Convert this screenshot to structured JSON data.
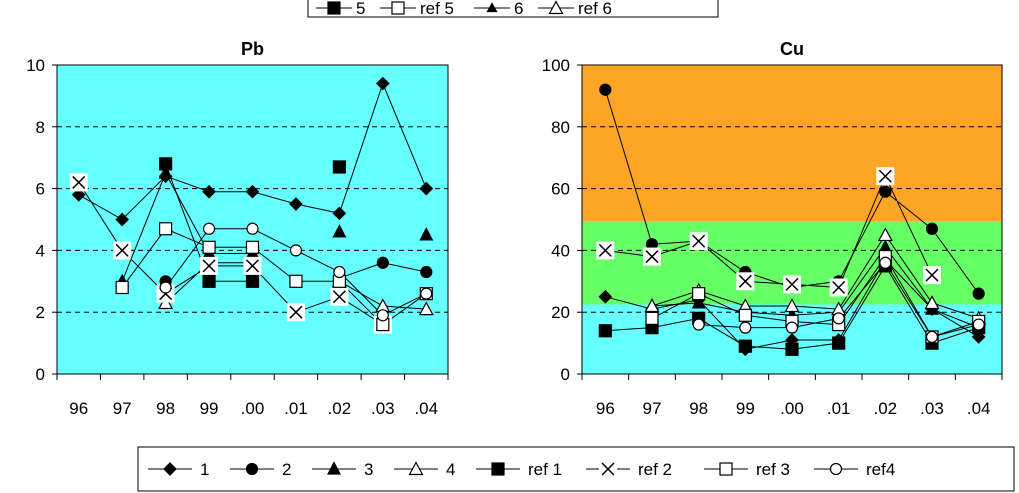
{
  "legends": {
    "top": {
      "entries": [
        {
          "label": "5",
          "marker": "square-filled"
        },
        {
          "label": "ref 5",
          "marker": "square-open"
        },
        {
          "label": "6",
          "marker": "triangle-filled-small"
        },
        {
          "label": "ref 6",
          "marker": "triangle-open"
        }
      ]
    },
    "bottom": {
      "entries": [
        {
          "label": "1",
          "marker": "diamond-filled"
        },
        {
          "label": "2",
          "marker": "circle-filled"
        },
        {
          "label": "3",
          "marker": "triangle-filled"
        },
        {
          "label": "4",
          "marker": "triangle-open"
        },
        {
          "label": "ref 1",
          "marker": "square-filled"
        },
        {
          "label": "ref  2",
          "marker": "cross"
        },
        {
          "label": "ref 3",
          "marker": "square-open"
        },
        {
          "label": "ref4",
          "marker": "circle-open"
        }
      ]
    }
  },
  "colors": {
    "cyan_zone": "#66ffff",
    "green_zone": "#66ff66",
    "orange_zone": "#ffa526",
    "line": "#000000"
  },
  "chart_data": [
    {
      "type": "line",
      "title": "Pb",
      "xlabel": "",
      "ylabel": "",
      "categories": [
        "96",
        "97",
        "98",
        "99",
        ".00",
        ".01",
        ".02",
        ".03",
        ".04"
      ],
      "ylim": [
        0,
        10
      ],
      "yticks": [
        "0",
        "2",
        "4",
        "6",
        "8",
        "10"
      ],
      "grid": "dashed horizontal at y ticks",
      "background_bands": [
        {
          "from": 0,
          "to": 10,
          "color": "cyan_zone"
        }
      ],
      "series": [
        {
          "name": "1",
          "marker": "diamond-filled",
          "values": [
            5.8,
            5.0,
            6.4,
            5.9,
            5.9,
            5.5,
            5.2,
            9.4,
            6.0
          ]
        },
        {
          "name": "2",
          "marker": "circle-filled",
          "values": [
            null,
            null,
            3.0,
            null,
            null,
            null,
            3.1,
            3.6,
            3.3
          ]
        },
        {
          "name": "3",
          "marker": "triangle-filled",
          "values": [
            null,
            3.0,
            6.5,
            3.9,
            3.9,
            null,
            4.6,
            null,
            4.5
          ]
        },
        {
          "name": "4",
          "marker": "triangle-open",
          "values": [
            null,
            null,
            2.3,
            3.6,
            3.6,
            null,
            3.0,
            2.2,
            2.1
          ]
        },
        {
          "name": "ref 1",
          "marker": "square-filled",
          "values": [
            null,
            null,
            6.8,
            3.0,
            3.0,
            null,
            6.7,
            null,
            null
          ]
        },
        {
          "name": "ref  2",
          "marker": "cross",
          "values": [
            6.2,
            4.0,
            2.6,
            3.5,
            3.5,
            2.0,
            2.5,
            1.6,
            null
          ]
        },
        {
          "name": "ref 3",
          "marker": "square-open",
          "values": [
            null,
            2.8,
            4.7,
            4.1,
            4.1,
            3.0,
            3.0,
            1.6,
            2.6
          ]
        },
        {
          "name": "ref4",
          "marker": "circle-open",
          "values": [
            null,
            null,
            2.8,
            4.7,
            4.7,
            4.0,
            3.3,
            1.9,
            2.6
          ]
        }
      ]
    },
    {
      "type": "line",
      "title": "Cu",
      "xlabel": "",
      "ylabel": "",
      "categories": [
        "96",
        "97",
        "98",
        "99",
        ".00",
        ".01",
        ".02",
        ".03",
        ".04"
      ],
      "ylim": [
        0,
        100
      ],
      "yticks": [
        "0",
        "20",
        "40",
        "60",
        "80",
        "100"
      ],
      "grid": "dashed horizontal at y ticks",
      "background_bands": [
        {
          "from": 0,
          "to": 22.5,
          "color": "cyan_zone"
        },
        {
          "from": 22.5,
          "to": 49.5,
          "color": "green_zone"
        },
        {
          "from": 49.5,
          "to": 100,
          "color": "orange_zone"
        }
      ],
      "series": [
        {
          "name": "1",
          "marker": "diamond-filled",
          "values": [
            25,
            21,
            24,
            8,
            11,
            11,
            37,
            21,
            12
          ]
        },
        {
          "name": "2",
          "marker": "circle-filled",
          "values": [
            92,
            42,
            43,
            33,
            28,
            30,
            59,
            47,
            26
          ]
        },
        {
          "name": "3",
          "marker": "triangle-filled",
          "values": [
            null,
            22,
            23,
            20,
            19,
            20,
            41,
            21,
            15
          ]
        },
        {
          "name": "4",
          "marker": "triangle-open",
          "values": [
            null,
            22,
            27,
            22,
            22,
            21,
            45,
            23,
            18
          ]
        },
        {
          "name": "ref 1",
          "marker": "square-filled",
          "values": [
            14,
            15,
            18,
            9,
            8,
            10,
            35,
            10,
            15
          ]
        },
        {
          "name": "ref  2",
          "marker": "cross",
          "values": [
            40,
            38,
            43,
            30,
            29,
            28,
            64,
            32,
            null
          ]
        },
        {
          "name": "ref 3",
          "marker": "square-open",
          "values": [
            null,
            18,
            26,
            19,
            17,
            16,
            38,
            12,
            17
          ]
        },
        {
          "name": "ref4",
          "marker": "circle-open",
          "values": [
            null,
            null,
            16,
            15,
            15,
            18,
            36,
            12,
            16
          ]
        }
      ]
    }
  ]
}
